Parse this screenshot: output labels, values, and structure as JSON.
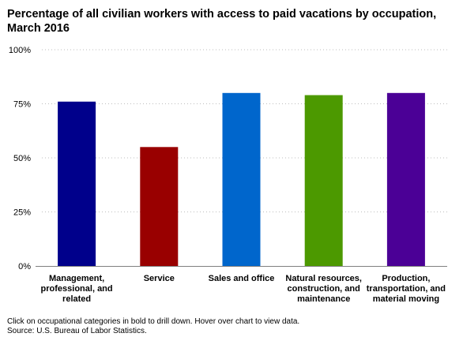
{
  "title": "Percentage of all civilian workers with access to paid vacations by occupation, March 2016",
  "chart_data": {
    "type": "bar",
    "title": "Percentage of all civilian workers with access to paid vacations by occupation, March 2016",
    "categories": [
      [
        "Management,",
        "professional, and",
        "related"
      ],
      [
        "Service"
      ],
      [
        "Sales and office"
      ],
      [
        "Natural resources,",
        "construction, and",
        "maintenance"
      ],
      [
        "Production,",
        "transportation, and",
        "material moving"
      ]
    ],
    "values": [
      76,
      55,
      80,
      79,
      80
    ],
    "colors": [
      "#00008B",
      "#990000",
      "#0066CC",
      "#4C9900",
      "#4B0096"
    ],
    "ylim": [
      0,
      100
    ],
    "yticks": [
      0,
      25,
      50,
      75,
      100
    ],
    "ytick_labels": [
      "0%",
      "25%",
      "50%",
      "75%",
      "100%"
    ],
    "grid": true,
    "xlabel": "",
    "ylabel": ""
  },
  "footer": {
    "note": "Click on occupational categories in bold to drill down. Hover over chart to view data.",
    "source": "Source: U.S. Bureau of Labor Statistics."
  }
}
